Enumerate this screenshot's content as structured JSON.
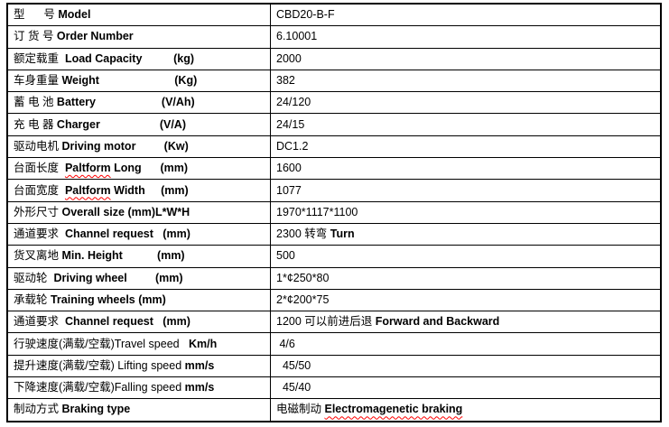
{
  "document": {
    "type": "specification-table",
    "product_model": "CBD20-B-F"
  },
  "colors": {
    "background": "#ffffff",
    "border": "#000000",
    "text": "#000000",
    "spellcheck_underline": "#ff0000"
  },
  "table": {
    "rows": [
      {
        "label": [
          {
            "t": "型      号 ",
            "b": false
          },
          {
            "t": "Model",
            "b": true
          }
        ],
        "value": [
          {
            "t": "CBD20-B-F",
            "b": false
          }
        ]
      },
      {
        "label": [
          {
            "t": "订 货 号 ",
            "b": false
          },
          {
            "t": "Order Number",
            "b": true
          }
        ],
        "value": [
          {
            "t": "6.10001",
            "b": false
          }
        ]
      },
      {
        "label": [
          {
            "t": "额定载重  ",
            "b": false
          },
          {
            "t": "Load Capacity          (kg)",
            "b": true
          }
        ],
        "value": [
          {
            "t": "2000",
            "b": false
          }
        ]
      },
      {
        "label": [
          {
            "t": "车身重量 ",
            "b": false
          },
          {
            "t": "Weight                        (Kg)",
            "b": true
          }
        ],
        "value": [
          {
            "t": "382",
            "b": false
          }
        ]
      },
      {
        "label": [
          {
            "t": "蓄 电 池 ",
            "b": false
          },
          {
            "t": "Battery                     (V/Ah)",
            "b": true
          }
        ],
        "value": [
          {
            "t": "24/120",
            "b": false
          }
        ]
      },
      {
        "label": [
          {
            "t": "充 电 器 ",
            "b": false
          },
          {
            "t": "Charger                   (V/A)",
            "b": true
          }
        ],
        "value": [
          {
            "t": "24/15",
            "b": false
          }
        ]
      },
      {
        "label": [
          {
            "t": "驱动电机 ",
            "b": false
          },
          {
            "t": "Driving motor         (Kw)",
            "b": true
          }
        ],
        "value": [
          {
            "t": "DC1.2",
            "b": false
          }
        ]
      },
      {
        "label": [
          {
            "t": "台面长度  ",
            "b": false
          },
          {
            "t": "Paltform",
            "b": true,
            "u": true
          },
          {
            "t": " Long",
            "b": true
          },
          {
            "t": "      (mm)",
            "b": true
          }
        ],
        "value": [
          {
            "t": "1600",
            "b": false
          }
        ]
      },
      {
        "label": [
          {
            "t": "台面宽度  ",
            "b": false
          },
          {
            "t": "Paltform",
            "b": true,
            "u": true
          },
          {
            "t": " Width",
            "b": true
          },
          {
            "t": "     (mm)",
            "b": true
          }
        ],
        "value": [
          {
            "t": "1077",
            "b": false
          }
        ]
      },
      {
        "label": [
          {
            "t": "外形尺寸 ",
            "b": false
          },
          {
            "t": "Overall size (mm)L*W*H",
            "b": true
          }
        ],
        "value": [
          {
            "t": "1970*1117*1100",
            "b": false
          }
        ]
      },
      {
        "label": [
          {
            "t": "通道要求  ",
            "b": false
          },
          {
            "t": "Channel request   (mm)",
            "b": true
          }
        ],
        "value": [
          {
            "t": "2300 转弯 ",
            "b": false
          },
          {
            "t": "Turn",
            "b": true
          }
        ]
      },
      {
        "label": [
          {
            "t": "货叉离地 ",
            "b": false
          },
          {
            "t": "Min. Height           (mm)",
            "b": true
          }
        ],
        "value": [
          {
            "t": "500",
            "b": false
          }
        ]
      },
      {
        "label": [
          {
            "t": "驱动轮  ",
            "b": false
          },
          {
            "t": "Driving wheel         (mm)",
            "b": true
          }
        ],
        "value": [
          {
            "t": "1*¢250*80",
            "b": false
          }
        ]
      },
      {
        "label": [
          {
            "t": "承载轮 ",
            "b": false
          },
          {
            "t": "Training wheels (mm)",
            "b": true
          }
        ],
        "value": [
          {
            "t": "2*¢200*75",
            "b": false
          }
        ]
      },
      {
        "label": [
          {
            "t": "通道要求  ",
            "b": false
          },
          {
            "t": "Channel request   (mm)",
            "b": true
          }
        ],
        "value": [
          {
            "t": "1200 可以前进后退 ",
            "b": false
          },
          {
            "t": "Forward and Backward",
            "b": true
          }
        ]
      },
      {
        "label": [
          {
            "t": "行驶速度(满载/空载)Travel speed",
            "b": false
          },
          {
            "t": "   Km/h",
            "b": true
          }
        ],
        "value": [
          {
            "t": " 4/6",
            "b": false
          }
        ]
      },
      {
        "label": [
          {
            "t": "提升速度(满载/空载) Lifting speed ",
            "b": false
          },
          {
            "t": "mm/s",
            "b": true
          }
        ],
        "value": [
          {
            "t": "  45/50",
            "b": false
          }
        ]
      },
      {
        "label": [
          {
            "t": "下降速度(满载/空载)Falling speed ",
            "b": false
          },
          {
            "t": "mm/s",
            "b": true
          }
        ],
        "value": [
          {
            "t": "  45/40",
            "b": false
          }
        ]
      },
      {
        "label": [
          {
            "t": "制动方式 ",
            "b": false
          },
          {
            "t": "Braking type",
            "b": true
          }
        ],
        "value": [
          {
            "t": "电磁制动 ",
            "b": false
          },
          {
            "t": "Electromagenetic braking",
            "b": true,
            "u": true
          }
        ]
      }
    ]
  }
}
